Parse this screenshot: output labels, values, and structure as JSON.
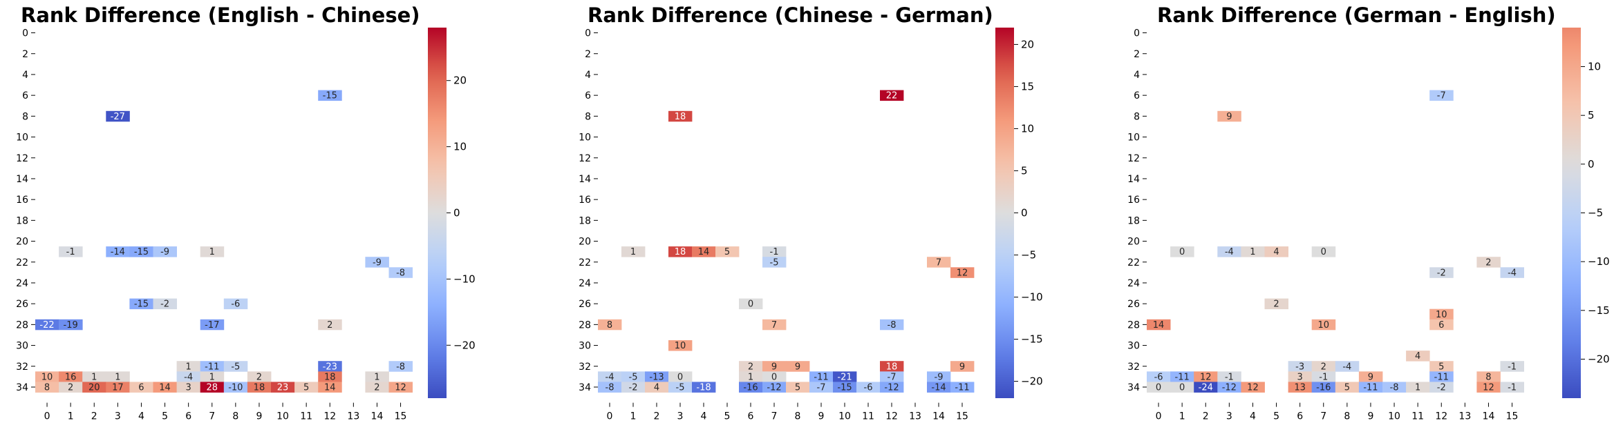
{
  "chart_data": [
    {
      "type": "heatmap",
      "title": "Rank Difference (English - Chinese)",
      "x_ticks": [
        "0",
        "1",
        "2",
        "3",
        "4",
        "5",
        "6",
        "7",
        "8",
        "9",
        "10",
        "11",
        "12",
        "13",
        "14",
        "15"
      ],
      "y_ticks": [
        "0",
        "2",
        "4",
        "6",
        "8",
        "10",
        "12",
        "14",
        "16",
        "18",
        "20",
        "22",
        "24",
        "26",
        "28",
        "30",
        "32",
        "34"
      ],
      "n_rows": 36,
      "n_cols": 16,
      "color_range": [
        -28,
        28
      ],
      "colorbar_ticks": [
        20,
        10,
        0,
        -10,
        -20
      ],
      "colormap": "coolwarm",
      "cells": [
        {
          "row": 6,
          "col": 12,
          "value": -15
        },
        {
          "row": 8,
          "col": 3,
          "value": -27
        },
        {
          "row": 21,
          "col": 1,
          "value": -1
        },
        {
          "row": 21,
          "col": 3,
          "value": -14
        },
        {
          "row": 21,
          "col": 4,
          "value": -15
        },
        {
          "row": 21,
          "col": 5,
          "value": -9
        },
        {
          "row": 21,
          "col": 7,
          "value": 1
        },
        {
          "row": 22,
          "col": 14,
          "value": -9
        },
        {
          "row": 23,
          "col": 15,
          "value": -8
        },
        {
          "row": 26,
          "col": 4,
          "value": -15
        },
        {
          "row": 26,
          "col": 5,
          "value": -2
        },
        {
          "row": 26,
          "col": 8,
          "value": -6
        },
        {
          "row": 28,
          "col": 0,
          "value": -22
        },
        {
          "row": 28,
          "col": 1,
          "value": -19
        },
        {
          "row": 28,
          "col": 7,
          "value": -17
        },
        {
          "row": 28,
          "col": 12,
          "value": 2
        },
        {
          "row": 32,
          "col": 6,
          "value": 1
        },
        {
          "row": 32,
          "col": 7,
          "value": -11
        },
        {
          "row": 32,
          "col": 8,
          "value": -5
        },
        {
          "row": 32,
          "col": 12,
          "value": -23
        },
        {
          "row": 32,
          "col": 15,
          "value": -8
        },
        {
          "row": 33,
          "col": 0,
          "value": 10
        },
        {
          "row": 33,
          "col": 1,
          "value": 16
        },
        {
          "row": 33,
          "col": 2,
          "value": 1
        },
        {
          "row": 33,
          "col": 3,
          "value": 1
        },
        {
          "row": 33,
          "col": 6,
          "value": -4
        },
        {
          "row": 33,
          "col": 7,
          "value": 1
        },
        {
          "row": 33,
          "col": 9,
          "value": 2
        },
        {
          "row": 33,
          "col": 12,
          "value": 18
        },
        {
          "row": 33,
          "col": 14,
          "value": 1
        },
        {
          "row": 34,
          "col": 0,
          "value": 8
        },
        {
          "row": 34,
          "col": 1,
          "value": 2
        },
        {
          "row": 34,
          "col": 2,
          "value": 20
        },
        {
          "row": 34,
          "col": 3,
          "value": 17
        },
        {
          "row": 34,
          "col": 4,
          "value": 6
        },
        {
          "row": 34,
          "col": 5,
          "value": 14
        },
        {
          "row": 34,
          "col": 6,
          "value": 3
        },
        {
          "row": 34,
          "col": 7,
          "value": 28
        },
        {
          "row": 34,
          "col": 8,
          "value": -10
        },
        {
          "row": 34,
          "col": 9,
          "value": 18
        },
        {
          "row": 34,
          "col": 10,
          "value": 23
        },
        {
          "row": 34,
          "col": 11,
          "value": 5
        },
        {
          "row": 34,
          "col": 12,
          "value": 14
        },
        {
          "row": 34,
          "col": 14,
          "value": 2
        },
        {
          "row": 34,
          "col": 15,
          "value": 12
        }
      ]
    },
    {
      "type": "heatmap",
      "title": "Rank Difference (Chinese - German)",
      "x_ticks": [
        "0",
        "1",
        "2",
        "3",
        "4",
        "5",
        "6",
        "7",
        "8",
        "9",
        "10",
        "11",
        "12",
        "13",
        "14",
        "15"
      ],
      "y_ticks": [
        "0",
        "2",
        "4",
        "6",
        "8",
        "10",
        "12",
        "14",
        "16",
        "18",
        "20",
        "22",
        "24",
        "26",
        "28",
        "30",
        "32",
        "34"
      ],
      "n_rows": 36,
      "n_cols": 16,
      "color_range": [
        -22,
        22
      ],
      "colorbar_ticks": [
        20,
        15,
        10,
        5,
        0,
        -5,
        -10,
        -15,
        -20
      ],
      "colormap": "coolwarm",
      "cells": [
        {
          "row": 6,
          "col": 12,
          "value": 22
        },
        {
          "row": 8,
          "col": 3,
          "value": 18
        },
        {
          "row": 21,
          "col": 1,
          "value": 1
        },
        {
          "row": 21,
          "col": 3,
          "value": 18
        },
        {
          "row": 21,
          "col": 4,
          "value": 14
        },
        {
          "row": 21,
          "col": 5,
          "value": 5
        },
        {
          "row": 21,
          "col": 7,
          "value": -1
        },
        {
          "row": 22,
          "col": 7,
          "value": -5
        },
        {
          "row": 22,
          "col": 14,
          "value": 7
        },
        {
          "row": 23,
          "col": 15,
          "value": 12
        },
        {
          "row": 26,
          "col": 6,
          "value": 0
        },
        {
          "row": 28,
          "col": 0,
          "value": 8
        },
        {
          "row": 28,
          "col": 7,
          "value": 7
        },
        {
          "row": 28,
          "col": 12,
          "value": -8
        },
        {
          "row": 30,
          "col": 3,
          "value": 10
        },
        {
          "row": 32,
          "col": 6,
          "value": 2
        },
        {
          "row": 32,
          "col": 7,
          "value": 9
        },
        {
          "row": 32,
          "col": 8,
          "value": 9
        },
        {
          "row": 32,
          "col": 12,
          "value": 18
        },
        {
          "row": 32,
          "col": 15,
          "value": 9
        },
        {
          "row": 33,
          "col": 0,
          "value": -4
        },
        {
          "row": 33,
          "col": 1,
          "value": -5
        },
        {
          "row": 33,
          "col": 2,
          "value": -13
        },
        {
          "row": 33,
          "col": 3,
          "value": 0
        },
        {
          "row": 33,
          "col": 6,
          "value": 1
        },
        {
          "row": 33,
          "col": 7,
          "value": 0
        },
        {
          "row": 33,
          "col": 9,
          "value": -11
        },
        {
          "row": 33,
          "col": 10,
          "value": -21
        },
        {
          "row": 33,
          "col": 12,
          "value": -7
        },
        {
          "row": 33,
          "col": 14,
          "value": -9
        },
        {
          "row": 34,
          "col": 0,
          "value": -8
        },
        {
          "row": 34,
          "col": 1,
          "value": -2
        },
        {
          "row": 34,
          "col": 2,
          "value": 4
        },
        {
          "row": 34,
          "col": 3,
          "value": -5
        },
        {
          "row": 34,
          "col": 4,
          "value": -18
        },
        {
          "row": 34,
          "col": 6,
          "value": -16
        },
        {
          "row": 34,
          "col": 7,
          "value": -12
        },
        {
          "row": 34,
          "col": 8,
          "value": 5
        },
        {
          "row": 34,
          "col": 9,
          "value": -7
        },
        {
          "row": 34,
          "col": 10,
          "value": -15
        },
        {
          "row": 34,
          "col": 11,
          "value": -6
        },
        {
          "row": 34,
          "col": 12,
          "value": -12
        },
        {
          "row": 34,
          "col": 14,
          "value": -14
        },
        {
          "row": 34,
          "col": 15,
          "value": -11
        }
      ]
    },
    {
      "type": "heatmap",
      "title": "Rank Difference (German - English)",
      "x_ticks": [
        "0",
        "1",
        "2",
        "3",
        "4",
        "5",
        "6",
        "7",
        "8",
        "9",
        "10",
        "11",
        "12",
        "13",
        "14",
        "15"
      ],
      "y_ticks": [
        "0",
        "2",
        "4",
        "6",
        "8",
        "10",
        "12",
        "14",
        "16",
        "18",
        "20",
        "22",
        "24",
        "26",
        "28",
        "30",
        "32",
        "34"
      ],
      "n_rows": 36,
      "n_cols": 16,
      "color_range": [
        -24,
        24
      ],
      "colormap_upper_limit": 14,
      "colorbar_ticks": [
        10,
        5,
        0,
        -5,
        -10,
        -15,
        -20
      ],
      "colormap": "coolwarm",
      "cells": [
        {
          "row": 6,
          "col": 12,
          "value": -7
        },
        {
          "row": 8,
          "col": 3,
          "value": 9
        },
        {
          "row": 21,
          "col": 1,
          "value": 0
        },
        {
          "row": 21,
          "col": 3,
          "value": -4
        },
        {
          "row": 21,
          "col": 4,
          "value": 1
        },
        {
          "row": 21,
          "col": 5,
          "value": 4
        },
        {
          "row": 21,
          "col": 7,
          "value": 0
        },
        {
          "row": 22,
          "col": 14,
          "value": 2
        },
        {
          "row": 23,
          "col": 12,
          "value": -2
        },
        {
          "row": 23,
          "col": 15,
          "value": -4
        },
        {
          "row": 26,
          "col": 5,
          "value": 2
        },
        {
          "row": 27,
          "col": 12,
          "value": 10
        },
        {
          "row": 28,
          "col": 0,
          "value": 14
        },
        {
          "row": 28,
          "col": 7,
          "value": 10
        },
        {
          "row": 28,
          "col": 12,
          "value": 6
        },
        {
          "row": 31,
          "col": 11,
          "value": 4
        },
        {
          "row": 32,
          "col": 6,
          "value": -3
        },
        {
          "row": 32,
          "col": 7,
          "value": 2
        },
        {
          "row": 32,
          "col": 8,
          "value": -4
        },
        {
          "row": 32,
          "col": 12,
          "value": 5
        },
        {
          "row": 32,
          "col": 15,
          "value": -1
        },
        {
          "row": 33,
          "col": 0,
          "value": -6
        },
        {
          "row": 33,
          "col": 1,
          "value": -11
        },
        {
          "row": 33,
          "col": 2,
          "value": 12
        },
        {
          "row": 33,
          "col": 3,
          "value": -1
        },
        {
          "row": 33,
          "col": 6,
          "value": 3
        },
        {
          "row": 33,
          "col": 7,
          "value": -1
        },
        {
          "row": 33,
          "col": 9,
          "value": 9
        },
        {
          "row": 33,
          "col": 12,
          "value": -11
        },
        {
          "row": 33,
          "col": 14,
          "value": 8
        },
        {
          "row": 34,
          "col": 0,
          "value": 0
        },
        {
          "row": 34,
          "col": 1,
          "value": 0
        },
        {
          "row": 34,
          "col": 2,
          "value": -24
        },
        {
          "row": 34,
          "col": 3,
          "value": -12
        },
        {
          "row": 34,
          "col": 4,
          "value": 12
        },
        {
          "row": 34,
          "col": 6,
          "value": 13
        },
        {
          "row": 34,
          "col": 7,
          "value": -16
        },
        {
          "row": 34,
          "col": 8,
          "value": 5
        },
        {
          "row": 34,
          "col": 9,
          "value": -11
        },
        {
          "row": 34,
          "col": 10,
          "value": -8
        },
        {
          "row": 34,
          "col": 11,
          "value": 1
        },
        {
          "row": 34,
          "col": 12,
          "value": -2
        },
        {
          "row": 34,
          "col": 14,
          "value": 12
        },
        {
          "row": 34,
          "col": 15,
          "value": -1
        }
      ]
    }
  ]
}
